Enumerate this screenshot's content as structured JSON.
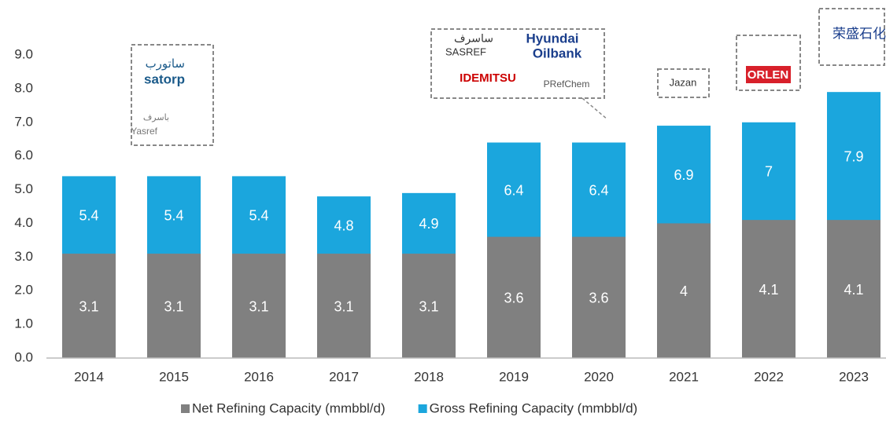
{
  "chart_data": {
    "type": "bar",
    "categories": [
      "2014",
      "2015",
      "2016",
      "2017",
      "2018",
      "2019",
      "2020",
      "2021",
      "2022",
      "2023"
    ],
    "series": [
      {
        "name": "Gross Refining Capacity (mmbbl/d)",
        "color": "#1ba6dd",
        "values": [
          5.4,
          5.4,
          5.4,
          4.8,
          4.9,
          6.4,
          6.4,
          6.9,
          7.0,
          7.9
        ]
      },
      {
        "name": "Net Refining Capacity (mmbbl/d)",
        "color": "#808080",
        "values": [
          3.1,
          3.1,
          3.1,
          3.1,
          3.1,
          3.6,
          3.6,
          4.0,
          4.1,
          4.1
        ]
      }
    ],
    "legend_order": [
      1,
      0
    ],
    "ylim": [
      0,
      9
    ],
    "yticks": [
      {
        "value": 0,
        "label": "0.0"
      },
      {
        "value": 1,
        "label": "1.0"
      },
      {
        "value": 2,
        "label": "2.0"
      },
      {
        "value": 3,
        "label": "3.0"
      },
      {
        "value": 4,
        "label": "4.0"
      },
      {
        "value": 5,
        "label": "5.0"
      },
      {
        "value": 6,
        "label": "6.0"
      },
      {
        "value": 7,
        "label": "7.0"
      },
      {
        "value": 8,
        "label": "8.0"
      },
      {
        "value": 9,
        "label": "9.0"
      }
    ],
    "grid": false,
    "annotations": [
      {
        "texts": [
          "ساتورب",
          "satorp",
          "باسرف",
          "Yasref"
        ]
      },
      {
        "texts": [
          "ساسرف",
          "SASREF",
          "Hyundai",
          "Oilbank",
          "IDEMITSU",
          "PRefChem"
        ]
      },
      {
        "texts": [
          "Jazan"
        ]
      },
      {
        "texts": [
          "ORLEN"
        ]
      },
      {
        "texts": [
          "荣盛石化"
        ]
      }
    ]
  }
}
